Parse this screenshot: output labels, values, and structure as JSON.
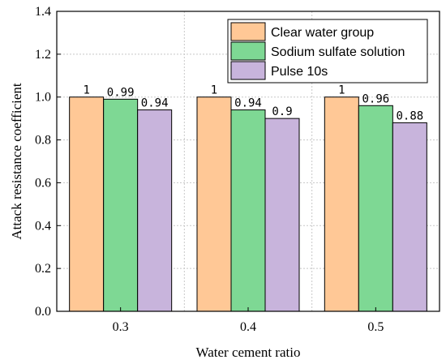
{
  "chart_data": {
    "type": "bar",
    "title": "",
    "xlabel": "Water cement ratio",
    "ylabel": "Attack resistance coefficient",
    "categories": [
      "0.3",
      "0.4",
      "0.5"
    ],
    "ylim": [
      0.0,
      1.4
    ],
    "yticks": [
      "0.0",
      "0.2",
      "0.4",
      "0.6",
      "0.8",
      "1.0",
      "1.2",
      "1.4"
    ],
    "grid": true,
    "legend_position": "top-right",
    "series": [
      {
        "name": "Clear water group",
        "color": "#FFC896",
        "values": [
          1,
          1,
          1
        ],
        "labels": [
          "1",
          "1",
          "1"
        ]
      },
      {
        "name": "Sodium sulfate solution",
        "color": "#7ED894",
        "values": [
          0.99,
          0.94,
          0.96
        ],
        "labels": [
          "0.99",
          "0.94",
          "0.96"
        ]
      },
      {
        "name": "Pulse 10s",
        "color": "#C8B4DC",
        "values": [
          0.94,
          0.9,
          0.88
        ],
        "labels": [
          "0.94",
          "0.9",
          "0.88"
        ]
      }
    ]
  }
}
